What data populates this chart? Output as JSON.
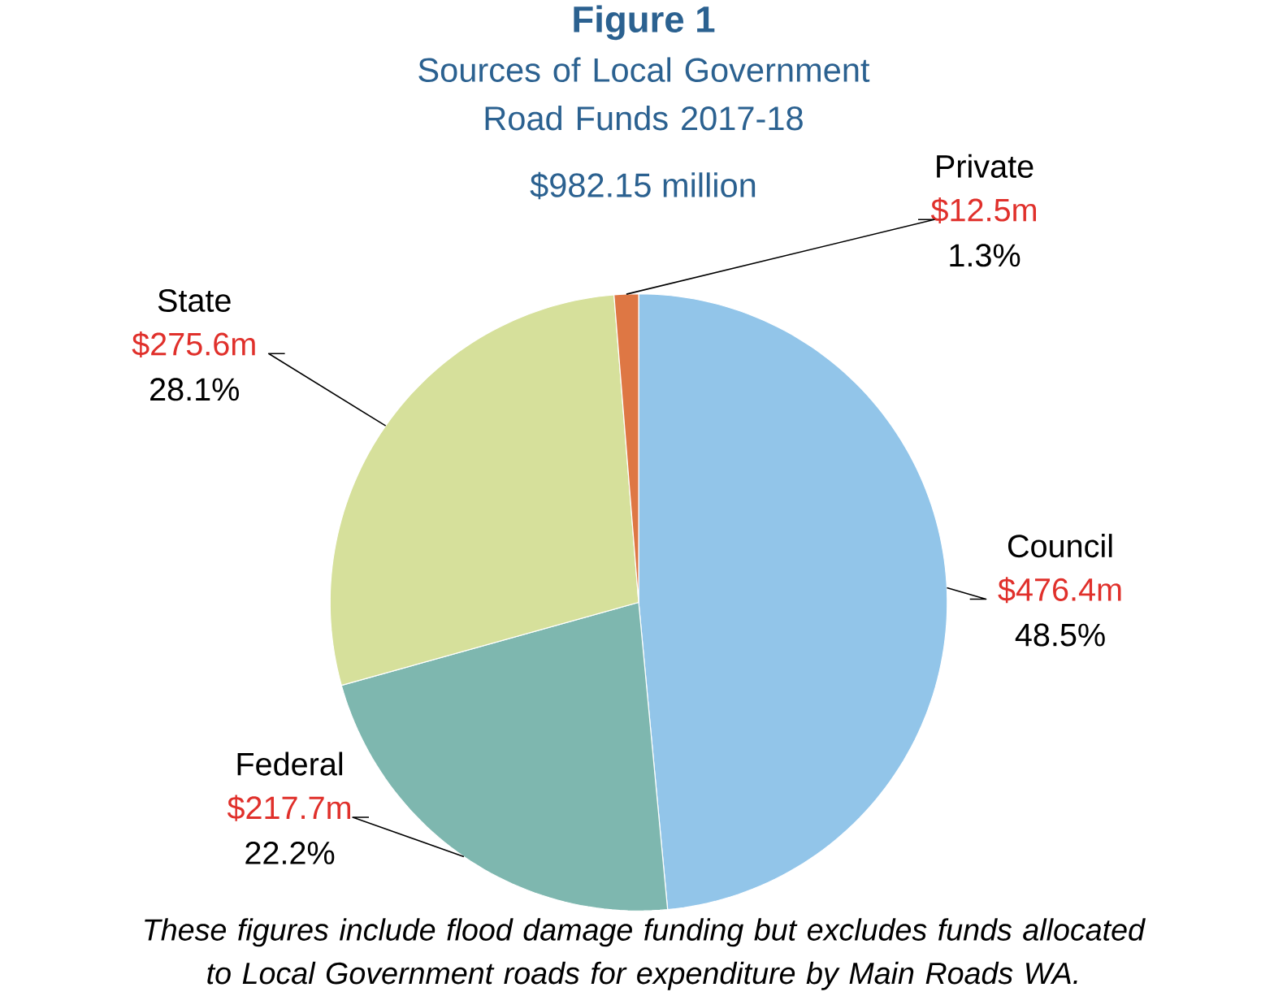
{
  "chart_data": {
    "type": "pie",
    "title": "Figure 1",
    "subtitle": "Sources of Local Government Road Funds 2017-18",
    "categories": [
      "Council",
      "Federal",
      "State",
      "Private"
    ],
    "values": [
      476.4,
      217.7,
      275.6,
      12.5
    ],
    "colors": [
      "#92c5e9",
      "#7eb7af",
      "#d6e09b",
      "#de7744"
    ],
    "value_labels": [
      "$476.4m",
      "$217.7m",
      "$275.6m",
      "$12.5m"
    ],
    "annotations": [
      "$982.15 million",
      "48.5%",
      "22.2%",
      "28.1%",
      "1.3%",
      "These figures include flood damage funding but excludes funds allocated to Local Government roads for expenditure by Main Roads WA."
    ]
  }
}
